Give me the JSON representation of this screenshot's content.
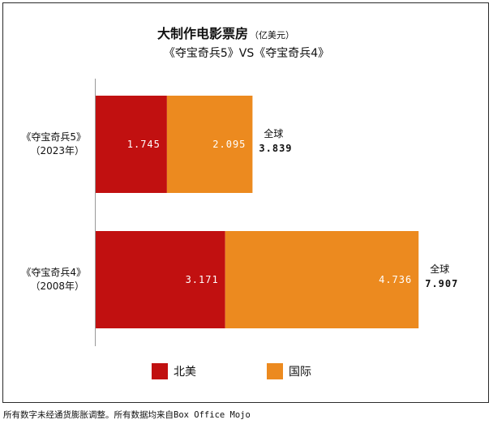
{
  "footnote": "所有数字未经通货膨胀调整。所有数据均来自Box Office Mojo",
  "chart_data": {
    "type": "bar",
    "orientation": "horizontal",
    "stacked": true,
    "title": "大制作电影票房",
    "title_unit": "（亿美元）",
    "subtitle": "《夺宝奇兵5》VS《夺宝奇兵4》",
    "categories": [
      {
        "name": "《夺宝奇兵5》",
        "year": "（2023年）"
      },
      {
        "name": "《夺宝奇兵4》",
        "year": "（2008年）"
      }
    ],
    "series": [
      {
        "name": "北美",
        "color": "#c11010",
        "values": [
          1.745,
          3.171
        ],
        "labels": [
          "1.745",
          "3.171"
        ]
      },
      {
        "name": "国际",
        "color": "#ec8a1f",
        "values": [
          2.095,
          4.736
        ],
        "labels": [
          "2.095",
          "4.736"
        ]
      }
    ],
    "totals": {
      "label": "全球",
      "values": [
        3.839,
        7.907
      ],
      "labels": [
        "3.839",
        "7.907"
      ]
    },
    "xlim": [
      0,
      8.2
    ],
    "grid": false,
    "legend_position": "bottom"
  }
}
